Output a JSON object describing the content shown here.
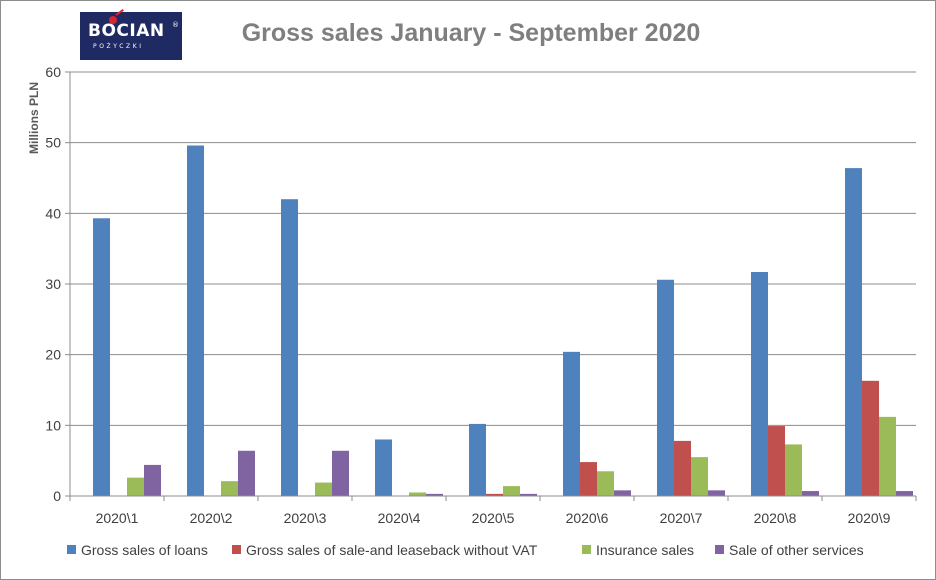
{
  "logo": {
    "main": "BOCIAN",
    "registered": "®",
    "sub": "POŻYCZKI"
  },
  "chart_data": {
    "type": "bar",
    "title": "Gross sales January - September 2020",
    "xlabel": "",
    "ylabel": "Millions PLN",
    "ylim": [
      0,
      60
    ],
    "yticks": [
      "0",
      "10",
      "20",
      "30",
      "40",
      "50",
      "60"
    ],
    "grid": true,
    "legend_position": "bottom",
    "categories": [
      "2020\\1",
      "2020\\2",
      "2020\\3",
      "2020\\4",
      "2020\\5",
      "2020\\6",
      "2020\\7",
      "2020\\8",
      "2020\\9"
    ],
    "series": [
      {
        "name": "Gross sales of loans",
        "color": "#4f81bd",
        "values": [
          39.3,
          49.6,
          42.0,
          8.0,
          10.2,
          20.4,
          30.6,
          31.7,
          46.4
        ]
      },
      {
        "name": "Gross sales of sale-and leaseback without VAT",
        "color": "#c0504d",
        "values": [
          0,
          0,
          0,
          0,
          0.3,
          4.8,
          7.8,
          9.9,
          16.3
        ]
      },
      {
        "name": "Insurance sales",
        "color": "#9bbb59",
        "values": [
          2.6,
          2.1,
          1.9,
          0.5,
          1.4,
          3.5,
          5.5,
          7.3,
          11.2
        ]
      },
      {
        "name": "Sale of other services",
        "color": "#8064a2",
        "values": [
          4.4,
          6.4,
          6.4,
          0.3,
          0.3,
          0.8,
          0.8,
          0.7,
          0.7
        ]
      }
    ]
  }
}
